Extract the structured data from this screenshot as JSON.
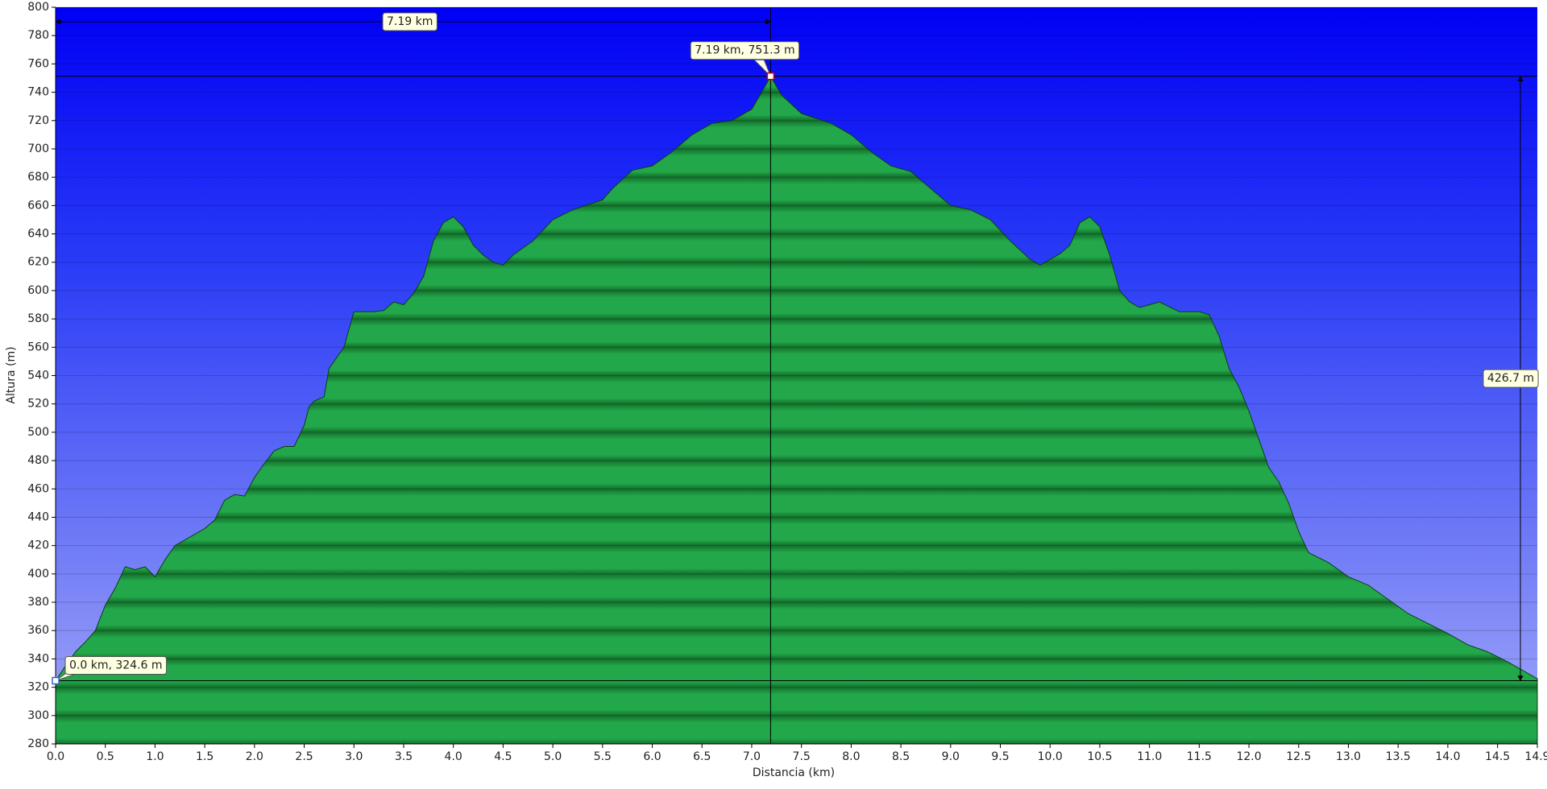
{
  "chart_data": {
    "type": "area",
    "x_label": "Distancia  (km)",
    "y_label": "Altura (m)",
    "x": [
      0.0,
      0.1,
      0.2,
      0.3,
      0.4,
      0.5,
      0.6,
      0.7,
      0.8,
      0.9,
      1.0,
      1.1,
      1.2,
      1.4,
      1.5,
      1.6,
      1.7,
      1.8,
      1.9,
      2.0,
      2.1,
      2.2,
      2.3,
      2.4,
      2.5,
      2.55,
      2.6,
      2.7,
      2.75,
      2.9,
      3.0,
      3.2,
      3.3,
      3.4,
      3.5,
      3.6,
      3.7,
      3.8,
      3.9,
      4.0,
      4.1,
      4.2,
      4.3,
      4.4,
      4.5,
      4.6,
      4.8,
      5.0,
      5.2,
      5.5,
      5.6,
      5.8,
      6.0,
      6.2,
      6.4,
      6.6,
      6.8,
      7.0,
      7.1,
      7.19,
      7.3,
      7.5,
      7.8,
      8.0,
      8.2,
      8.4,
      8.6,
      8.8,
      9.0,
      9.2,
      9.4,
      9.6,
      9.8,
      9.9,
      10.1,
      10.2,
      10.3,
      10.4,
      10.5,
      10.6,
      10.7,
      10.8,
      10.9,
      11.0,
      11.1,
      11.3,
      11.5,
      11.6,
      11.7,
      11.8,
      11.9,
      12.0,
      12.1,
      12.2,
      12.3,
      12.4,
      12.5,
      12.6,
      12.8,
      13.0,
      13.2,
      13.4,
      13.6,
      13.8,
      14.0,
      14.2,
      14.4,
      14.6,
      14.9
    ],
    "values": [
      324.6,
      335,
      345,
      352,
      360,
      378,
      390,
      405,
      403,
      405,
      398,
      410,
      420,
      428,
      432,
      438,
      452,
      456,
      455,
      468,
      478,
      487,
      490,
      490,
      505,
      518,
      522,
      525,
      545,
      560,
      585,
      585,
      586,
      592,
      590,
      598,
      610,
      635,
      648,
      652,
      645,
      632,
      625,
      620,
      618,
      625,
      635,
      650,
      657,
      664,
      672,
      685,
      688,
      698,
      710,
      718,
      720,
      728,
      740,
      751.3,
      738,
      725,
      718,
      710,
      698,
      688,
      684,
      672,
      660,
      657,
      650,
      635,
      622,
      618,
      626,
      632,
      648,
      652,
      645,
      625,
      600,
      592,
      588,
      590,
      592,
      585,
      585,
      583,
      568,
      545,
      532,
      515,
      495,
      475,
      465,
      450,
      430,
      415,
      408,
      398,
      392,
      382,
      372,
      365,
      358,
      350,
      345,
      338,
      326
    ],
    "color": "#22a84a",
    "xlim": [
      0,
      14.9
    ],
    "ylim": [
      280,
      800
    ],
    "xticks": [
      {
        "value": 0,
        "label": "0.0"
      },
      0.5,
      {
        "value": 1,
        "label": "1.0"
      },
      1.5,
      {
        "value": 2,
        "label": "2.0"
      },
      2.5,
      {
        "value": 3,
        "label": "3.0"
      },
      3.5,
      {
        "value": 4,
        "label": "4.0"
      },
      4.5,
      {
        "value": 5,
        "label": "5.0"
      },
      5.5,
      {
        "value": 6,
        "label": "6.0"
      },
      6.5,
      {
        "value": 7,
        "label": "7.0"
      },
      7.5,
      {
        "value": 8,
        "label": "8.0"
      },
      8.5,
      {
        "value": 9,
        "label": "9.0"
      },
      9.5,
      {
        "value": 10,
        "label": "10.0"
      },
      10.5,
      {
        "value": 11,
        "label": "11.0"
      },
      11.5,
      {
        "value": 12,
        "label": "12.0"
      },
      12.5,
      {
        "value": 13,
        "label": "13.0"
      },
      13.5,
      {
        "value": 14,
        "label": "14.0"
      },
      14.5,
      14.9
    ],
    "yticks": [
      280,
      300,
      320,
      340,
      360,
      380,
      400,
      420,
      440,
      460,
      480,
      500,
      520,
      540,
      560,
      580,
      600,
      620,
      640,
      660,
      680,
      700,
      720,
      740,
      760,
      780,
      800
    ],
    "grid": true,
    "start_marker": {
      "x": 0.0,
      "y": 324.6,
      "label": "0.0 km, 324.6 m"
    },
    "peak_marker": {
      "x": 7.19,
      "y": 751.3,
      "label": "7.19 km, 751.3 m"
    },
    "distance": {
      "value": 7.19,
      "label": "7.19 km"
    },
    "climb": {
      "value": 426.7,
      "label": "426.7 m"
    }
  }
}
